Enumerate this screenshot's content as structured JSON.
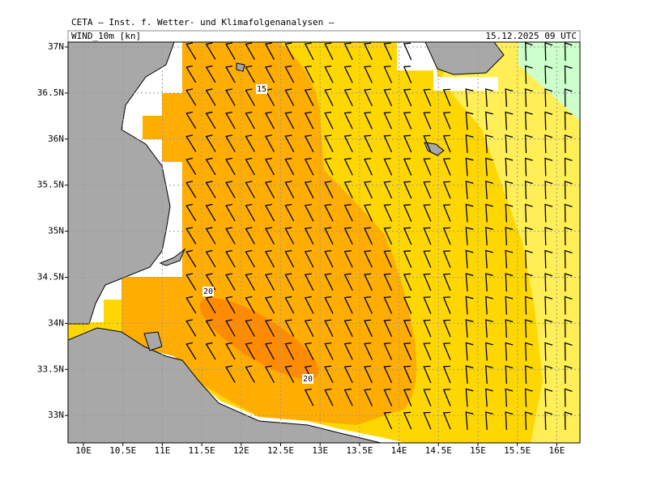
{
  "header": {
    "institute": "CETA – Inst. f. Wetter- und Klimafolgenanalysen –",
    "field": "WIND_10m [kn]",
    "valid_time": "15.12.2025 09 UTC"
  },
  "map": {
    "lon_ticks": [
      {
        "value": 10,
        "label": "10E"
      },
      {
        "value": 10.5,
        "label": "10.5E"
      },
      {
        "value": 11,
        "label": "11E"
      },
      {
        "value": 11.5,
        "label": "11.5E"
      },
      {
        "value": 12,
        "label": "12E"
      },
      {
        "value": 12.5,
        "label": "12.5E"
      },
      {
        "value": 13,
        "label": "13E"
      },
      {
        "value": 13.5,
        "label": "13.5E"
      },
      {
        "value": 14,
        "label": "14E"
      },
      {
        "value": 14.5,
        "label": "14.5E"
      },
      {
        "value": 15,
        "label": "15E"
      },
      {
        "value": 15.5,
        "label": "15.5E"
      },
      {
        "value": 16,
        "label": "16E"
      }
    ],
    "lat_ticks": [
      {
        "value": 37,
        "label": "37N"
      },
      {
        "value": 36.5,
        "label": "36.5N"
      },
      {
        "value": 36,
        "label": "36N"
      },
      {
        "value": 35.5,
        "label": "35.5N"
      },
      {
        "value": 35,
        "label": "35N"
      },
      {
        "value": 34.5,
        "label": "34.5N"
      },
      {
        "value": 34,
        "label": "34N"
      },
      {
        "value": 33.5,
        "label": "33.5N"
      },
      {
        "value": 33,
        "label": "33N"
      }
    ],
    "contour_labels": [
      "15",
      "20",
      "20"
    ]
  }
}
